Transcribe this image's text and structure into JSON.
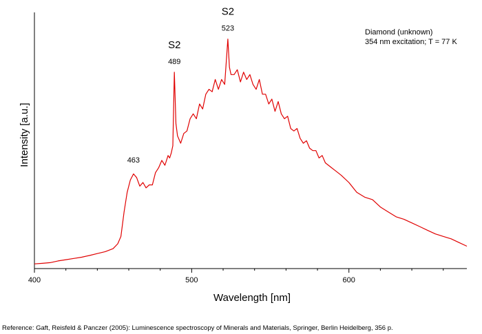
{
  "reference": "Reference: Gaft, Reisfeld & Panczer (2005): Luminescence spectroscopy of Minerals and Materials, Springer, Berlin Heidelberg, 356 p.",
  "colors": {
    "line": "#e00000",
    "axis": "#000000"
  },
  "chart_data": {
    "type": "line",
    "title": "",
    "xlabel": "Wavelength [nm]",
    "ylabel": "Intensity [a.u.]",
    "xlim": [
      400,
      675
    ],
    "ylim": [
      0,
      1
    ],
    "x_ticks": [
      400,
      500,
      600
    ],
    "y_ticks_labeled": false,
    "grid": false,
    "legend_lines": [
      "Diamond (unknown)",
      "354 nm excitation; T = 77 K"
    ],
    "legend_placement": "top-right",
    "annotations": [
      {
        "x": 463,
        "y": 0.388,
        "label": "463",
        "tag": ""
      },
      {
        "x": 489,
        "y": 0.79,
        "label": "489",
        "tag": "S2"
      },
      {
        "x": 523,
        "y": 0.925,
        "label": "523",
        "tag": "S2"
      }
    ],
    "series": [
      {
        "x": [
          400,
          405,
          410,
          415,
          420,
          425,
          430,
          435,
          440,
          445,
          450,
          453,
          455,
          457,
          459,
          461,
          463,
          465,
          467,
          469,
          471,
          473,
          475,
          477,
          479,
          481,
          483,
          485,
          486,
          487,
          488,
          489,
          490,
          491,
          493,
          495,
          497,
          499,
          501,
          503,
          505,
          507,
          509,
          511,
          513,
          515,
          517,
          519,
          521,
          523,
          524,
          525,
          527,
          529,
          531,
          533,
          535,
          537,
          539,
          541,
          543,
          545,
          547,
          549,
          551,
          553,
          555,
          557,
          559,
          561,
          563,
          565,
          567,
          569,
          571,
          573,
          575,
          577,
          579,
          581,
          583,
          585,
          587,
          589,
          591,
          593,
          595,
          600,
          605,
          610,
          615,
          620,
          625,
          630,
          635,
          640,
          645,
          650,
          655,
          660,
          665,
          670,
          675
        ],
        "y": [
          0.008,
          0.01,
          0.013,
          0.02,
          0.025,
          0.03,
          0.035,
          0.042,
          0.05,
          0.058,
          0.07,
          0.09,
          0.12,
          0.22,
          0.3,
          0.35,
          0.375,
          0.36,
          0.325,
          0.34,
          0.318,
          0.33,
          0.33,
          0.38,
          0.4,
          0.43,
          0.41,
          0.45,
          0.44,
          0.46,
          0.49,
          0.79,
          0.58,
          0.53,
          0.5,
          0.54,
          0.55,
          0.6,
          0.62,
          0.6,
          0.66,
          0.64,
          0.7,
          0.72,
          0.71,
          0.76,
          0.72,
          0.76,
          0.74,
          0.925,
          0.81,
          0.78,
          0.78,
          0.8,
          0.75,
          0.79,
          0.76,
          0.78,
          0.74,
          0.72,
          0.76,
          0.7,
          0.7,
          0.66,
          0.68,
          0.63,
          0.67,
          0.62,
          0.6,
          0.61,
          0.56,
          0.55,
          0.56,
          0.52,
          0.5,
          0.51,
          0.48,
          0.47,
          0.47,
          0.44,
          0.45,
          0.42,
          0.41,
          0.4,
          0.39,
          0.38,
          0.37,
          0.34,
          0.3,
          0.28,
          0.27,
          0.24,
          0.22,
          0.2,
          0.19,
          0.175,
          0.16,
          0.145,
          0.13,
          0.12,
          0.11,
          0.095,
          0.08
        ]
      }
    ]
  }
}
